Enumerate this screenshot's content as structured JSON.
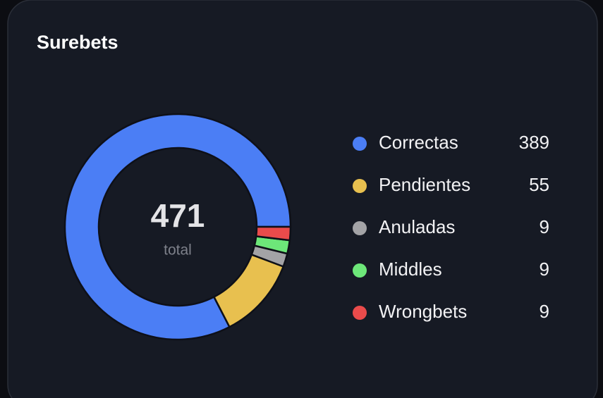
{
  "chart_data": {
    "type": "donut",
    "title": "Surebets",
    "categories": [
      "Correctas",
      "Pendientes",
      "Anuladas",
      "Middles",
      "Wrongbets"
    ],
    "values": [
      389,
      55,
      9,
      9,
      9
    ],
    "colors": [
      "#4b7ef5",
      "#e8c04f",
      "#a3a3a6",
      "#6de779",
      "#ea4b4b"
    ],
    "total": 471,
    "total_label": "total"
  }
}
